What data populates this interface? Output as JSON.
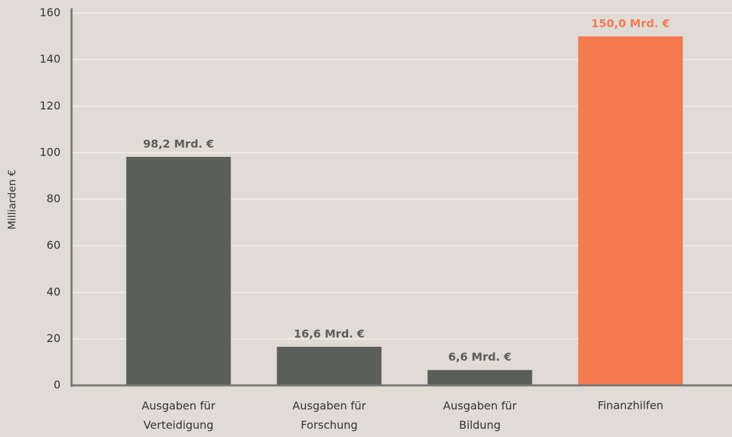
{
  "chart_data": {
    "type": "bar",
    "ylabel": "Milliarden €",
    "categories": [
      "Ausgaben für Verteidigung",
      "Ausgaben für Forschung",
      "Ausgaben für Bildung",
      "Finanzhilfen"
    ],
    "values": [
      98.2,
      16.6,
      6.6,
      150.0
    ],
    "value_labels": [
      "98,2 Mrd. €",
      "16,6 Mrd. €",
      "6,6 Mrd. €",
      "150,0 Mrd. €"
    ],
    "colors": [
      "#5c5e5c",
      "#5c5e5c",
      "#5c5e5c",
      "#f47a50"
    ],
    "ylim": [
      0,
      160
    ],
    "yticks": [
      0,
      20,
      40,
      60,
      80,
      100,
      120,
      140,
      160
    ],
    "grid": true
  }
}
